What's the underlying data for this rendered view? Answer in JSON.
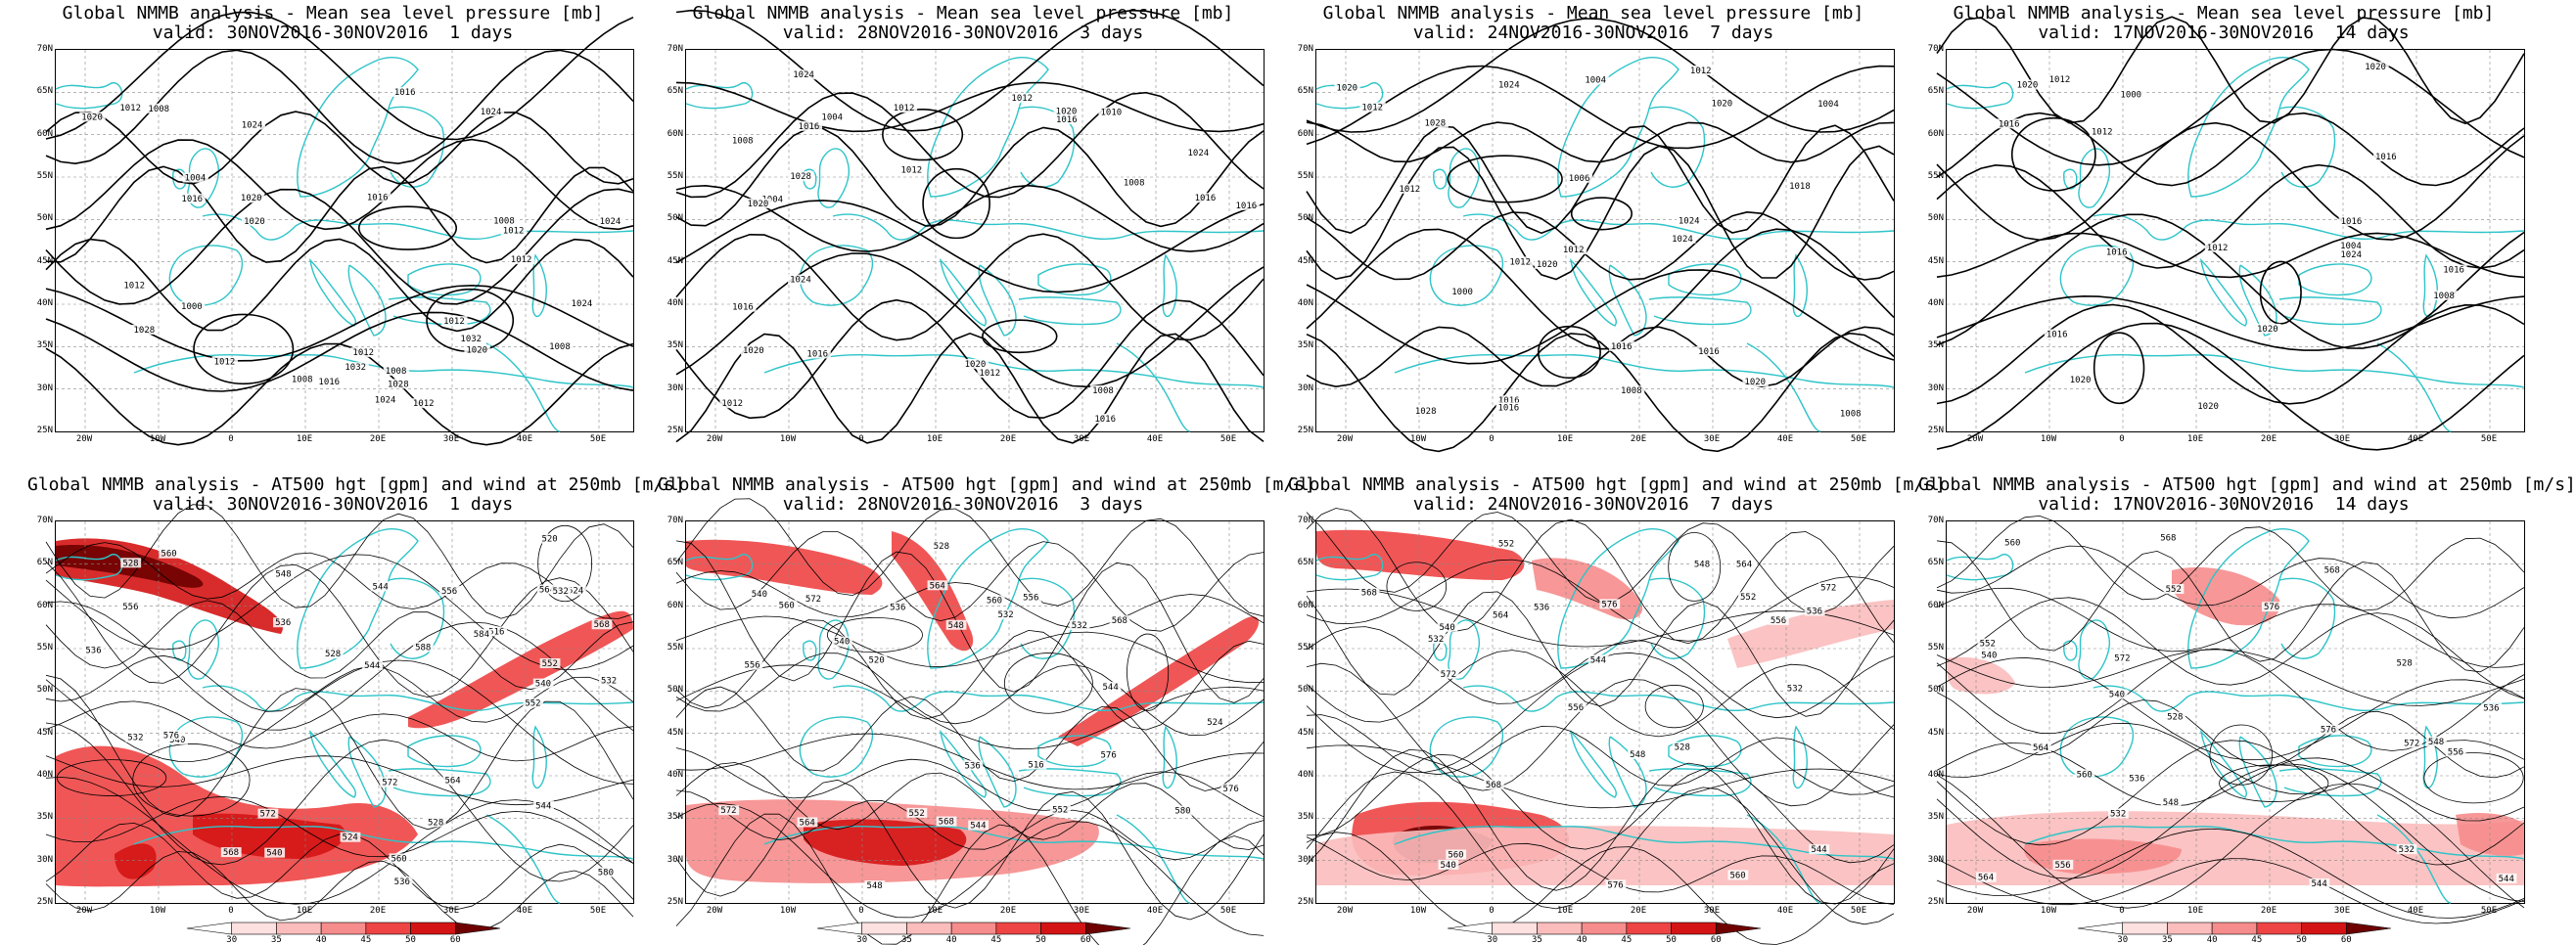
{
  "lat_labels": [
    "70N",
    "65N",
    "60N",
    "55N",
    "50N",
    "45N",
    "40N",
    "35N",
    "30N",
    "25N"
  ],
  "lon_labels": [
    "20W",
    "10W",
    "0",
    "10E",
    "20E",
    "30E",
    "40E",
    "50E"
  ],
  "colorbar": {
    "labels": [
      "30",
      "35",
      "40",
      "45",
      "50",
      "60"
    ],
    "colors": [
      "#ffffff",
      "#fde0e0",
      "#fbbcbc",
      "#f68c8c",
      "#ee4444",
      "#d41414",
      "#6e0000"
    ]
  },
  "colors": {
    "coast": "#2ec4c8",
    "contour": "#000000",
    "grid": "#888888"
  },
  "panels": [
    {
      "row": 0,
      "col": 0,
      "title1": "Global NMMB analysis - Mean sea level pressure [mb]",
      "title2": "valid: 30NOV2016-30NOV2016  1 days",
      "labels": [
        "1008",
        "1012",
        "1016",
        "1020",
        "1024",
        "1028",
        "1032",
        "1012",
        "1008",
        "1004",
        "1000",
        "1008",
        "1016",
        "1012",
        "1024",
        "1028",
        "1032",
        "1020",
        "1024",
        "1012",
        "1008",
        "1012",
        "1016",
        "1020",
        "1008",
        "1012",
        "1016",
        "1024",
        "1024",
        "1020",
        "1012",
        "1012"
      ]
    },
    {
      "row": 0,
      "col": 1,
      "title1": "Global NMMB analysis - Mean sea level pressure [mb]",
      "title2": "valid: 28NOV2016-30NOV2016  3 days",
      "labels": [
        "1012",
        "1016",
        "1020",
        "1024",
        "1020",
        "1004",
        "1008",
        "1008",
        "1004",
        "1008",
        "1012",
        "1016",
        "1020",
        "1024",
        "1016",
        "1012",
        "1012",
        "1016",
        "1016",
        "1010",
        "1012",
        "1016",
        "1016",
        "1020",
        "1024",
        "1028"
      ]
    },
    {
      "row": 0,
      "col": 2,
      "title1": "Global NMMB analysis - Mean sea level pressure [mb]",
      "title2": "valid: 24NOV2016-30NOV2016  7 days",
      "labels": [
        "1012",
        "1016",
        "1020",
        "1024",
        "1028",
        "1012",
        "1008",
        "1004",
        "1006",
        "1004",
        "1008",
        "1012",
        "1016",
        "1020",
        "1024",
        "1012",
        "1016",
        "1020",
        "1012",
        "1016",
        "1020",
        "1024",
        "1028",
        "1018",
        "1000"
      ]
    },
    {
      "row": 0,
      "col": 3,
      "title1": "Global NMMB analysis - Mean sea level pressure [mb]",
      "title2": "valid: 17NOV2016-30NOV2016  14 days",
      "labels": [
        "1000",
        "1004",
        "1008",
        "1012",
        "1016",
        "1020",
        "1012",
        "1016",
        "1016",
        "1020",
        "1024",
        "1020",
        "1020",
        "1012",
        "1016",
        "1016",
        "1020",
        "1016"
      ]
    },
    {
      "row": 1,
      "col": 0,
      "title1": "Global NMMB analysis - AT500 hgt [gpm] and wind at 250mb [m/s]",
      "title2": "valid: 30NOV2016-30NOV2016  1 days",
      "labels": [
        "524",
        "528",
        "532",
        "536",
        "540",
        "544",
        "548",
        "552",
        "556",
        "560",
        "564",
        "568",
        "572",
        "516",
        "524",
        "528",
        "532",
        "536",
        "540",
        "544",
        "520",
        "528",
        "532",
        "536",
        "540",
        "544",
        "552",
        "556",
        "560",
        "564",
        "568",
        "572",
        "576",
        "580",
        "584",
        "588"
      ]
    },
    {
      "row": 1,
      "col": 1,
      "title1": "Global NMMB analysis - AT500 hgt [gpm] and wind at 250mb [m/s]",
      "title2": "valid: 28NOV2016-30NOV2016  3 days",
      "labels": [
        "532",
        "536",
        "540",
        "544",
        "548",
        "552",
        "556",
        "560",
        "564",
        "568",
        "572",
        "576",
        "516",
        "520",
        "524",
        "528",
        "532",
        "536",
        "540",
        "544",
        "548",
        "552",
        "556",
        "560",
        "564",
        "568",
        "572",
        "576",
        "580"
      ]
    },
    {
      "row": 1,
      "col": 2,
      "title1": "Global NMMB analysis - AT500 hgt [gpm] and wind at 250mb [m/s]",
      "title2": "valid: 24NOV2016-30NOV2016  7 days",
      "labels": [
        "532",
        "536",
        "540",
        "544",
        "548",
        "552",
        "556",
        "560",
        "564",
        "568",
        "572",
        "576",
        "528",
        "532",
        "536",
        "540",
        "544",
        "548",
        "552",
        "556",
        "560",
        "564",
        "568",
        "572",
        "576"
      ]
    },
    {
      "row": 1,
      "col": 3,
      "title1": "Global NMMB analysis - AT500 hgt [gpm] and wind at 250mb [m/s]",
      "title2": "valid: 17NOV2016-30NOV2016  14 days",
      "labels": [
        "528",
        "532",
        "536",
        "540",
        "544",
        "548",
        "552",
        "556",
        "560",
        "564",
        "568",
        "572",
        "576",
        "528",
        "532",
        "536",
        "540",
        "544",
        "548",
        "552",
        "556",
        "560",
        "564",
        "568",
        "572",
        "576"
      ]
    }
  ]
}
